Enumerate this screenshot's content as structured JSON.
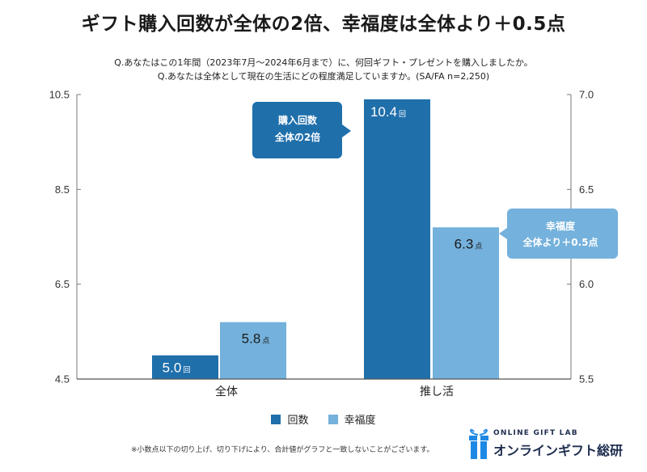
{
  "title": "ギフト購入回数が全体の2倍、幸福度は全体より＋0.5点",
  "questions": [
    "Q.あなたはこの1年間（2023年7月～2024年6月まで）に、何回ギフト・プレゼントを購入しましたか。",
    "Q.あなたは全体として現在の生活にどの程度満足していますか。(SA/FA n=2,250)"
  ],
  "callouts": {
    "count": [
      "購入回数",
      "全体の2倍"
    ],
    "happiness": [
      "幸福度",
      "全体より＋0.5点"
    ]
  },
  "legend": [
    "回数",
    "幸福度"
  ],
  "footnote": "※小数点以下の切り上げ、切り下げにより、合計値がグラフと一致しないことがございます。",
  "brand": {
    "en": "ONLINE GIFT LAB",
    "jp": "オンラインギフト総研"
  },
  "chart_data": {
    "type": "bar",
    "categories": [
      "全体",
      "推し活"
    ],
    "series": [
      {
        "name": "回数",
        "values": [
          5.0,
          10.4
        ],
        "unit": "回",
        "axis": "left",
        "color": "#1f6fab"
      },
      {
        "name": "幸福度",
        "values": [
          5.8,
          6.3
        ],
        "unit": "点",
        "axis": "right",
        "color": "#74b1dc"
      }
    ],
    "y_left": {
      "range": [
        4.5,
        10.5
      ],
      "ticks": [
        "4.5",
        "6.5",
        "8.5",
        "10.5"
      ]
    },
    "y_right": {
      "range": [
        5.5,
        7.0
      ],
      "ticks": [
        "5.5",
        "6.0",
        "6.5",
        "7.0"
      ]
    },
    "grid": false
  }
}
